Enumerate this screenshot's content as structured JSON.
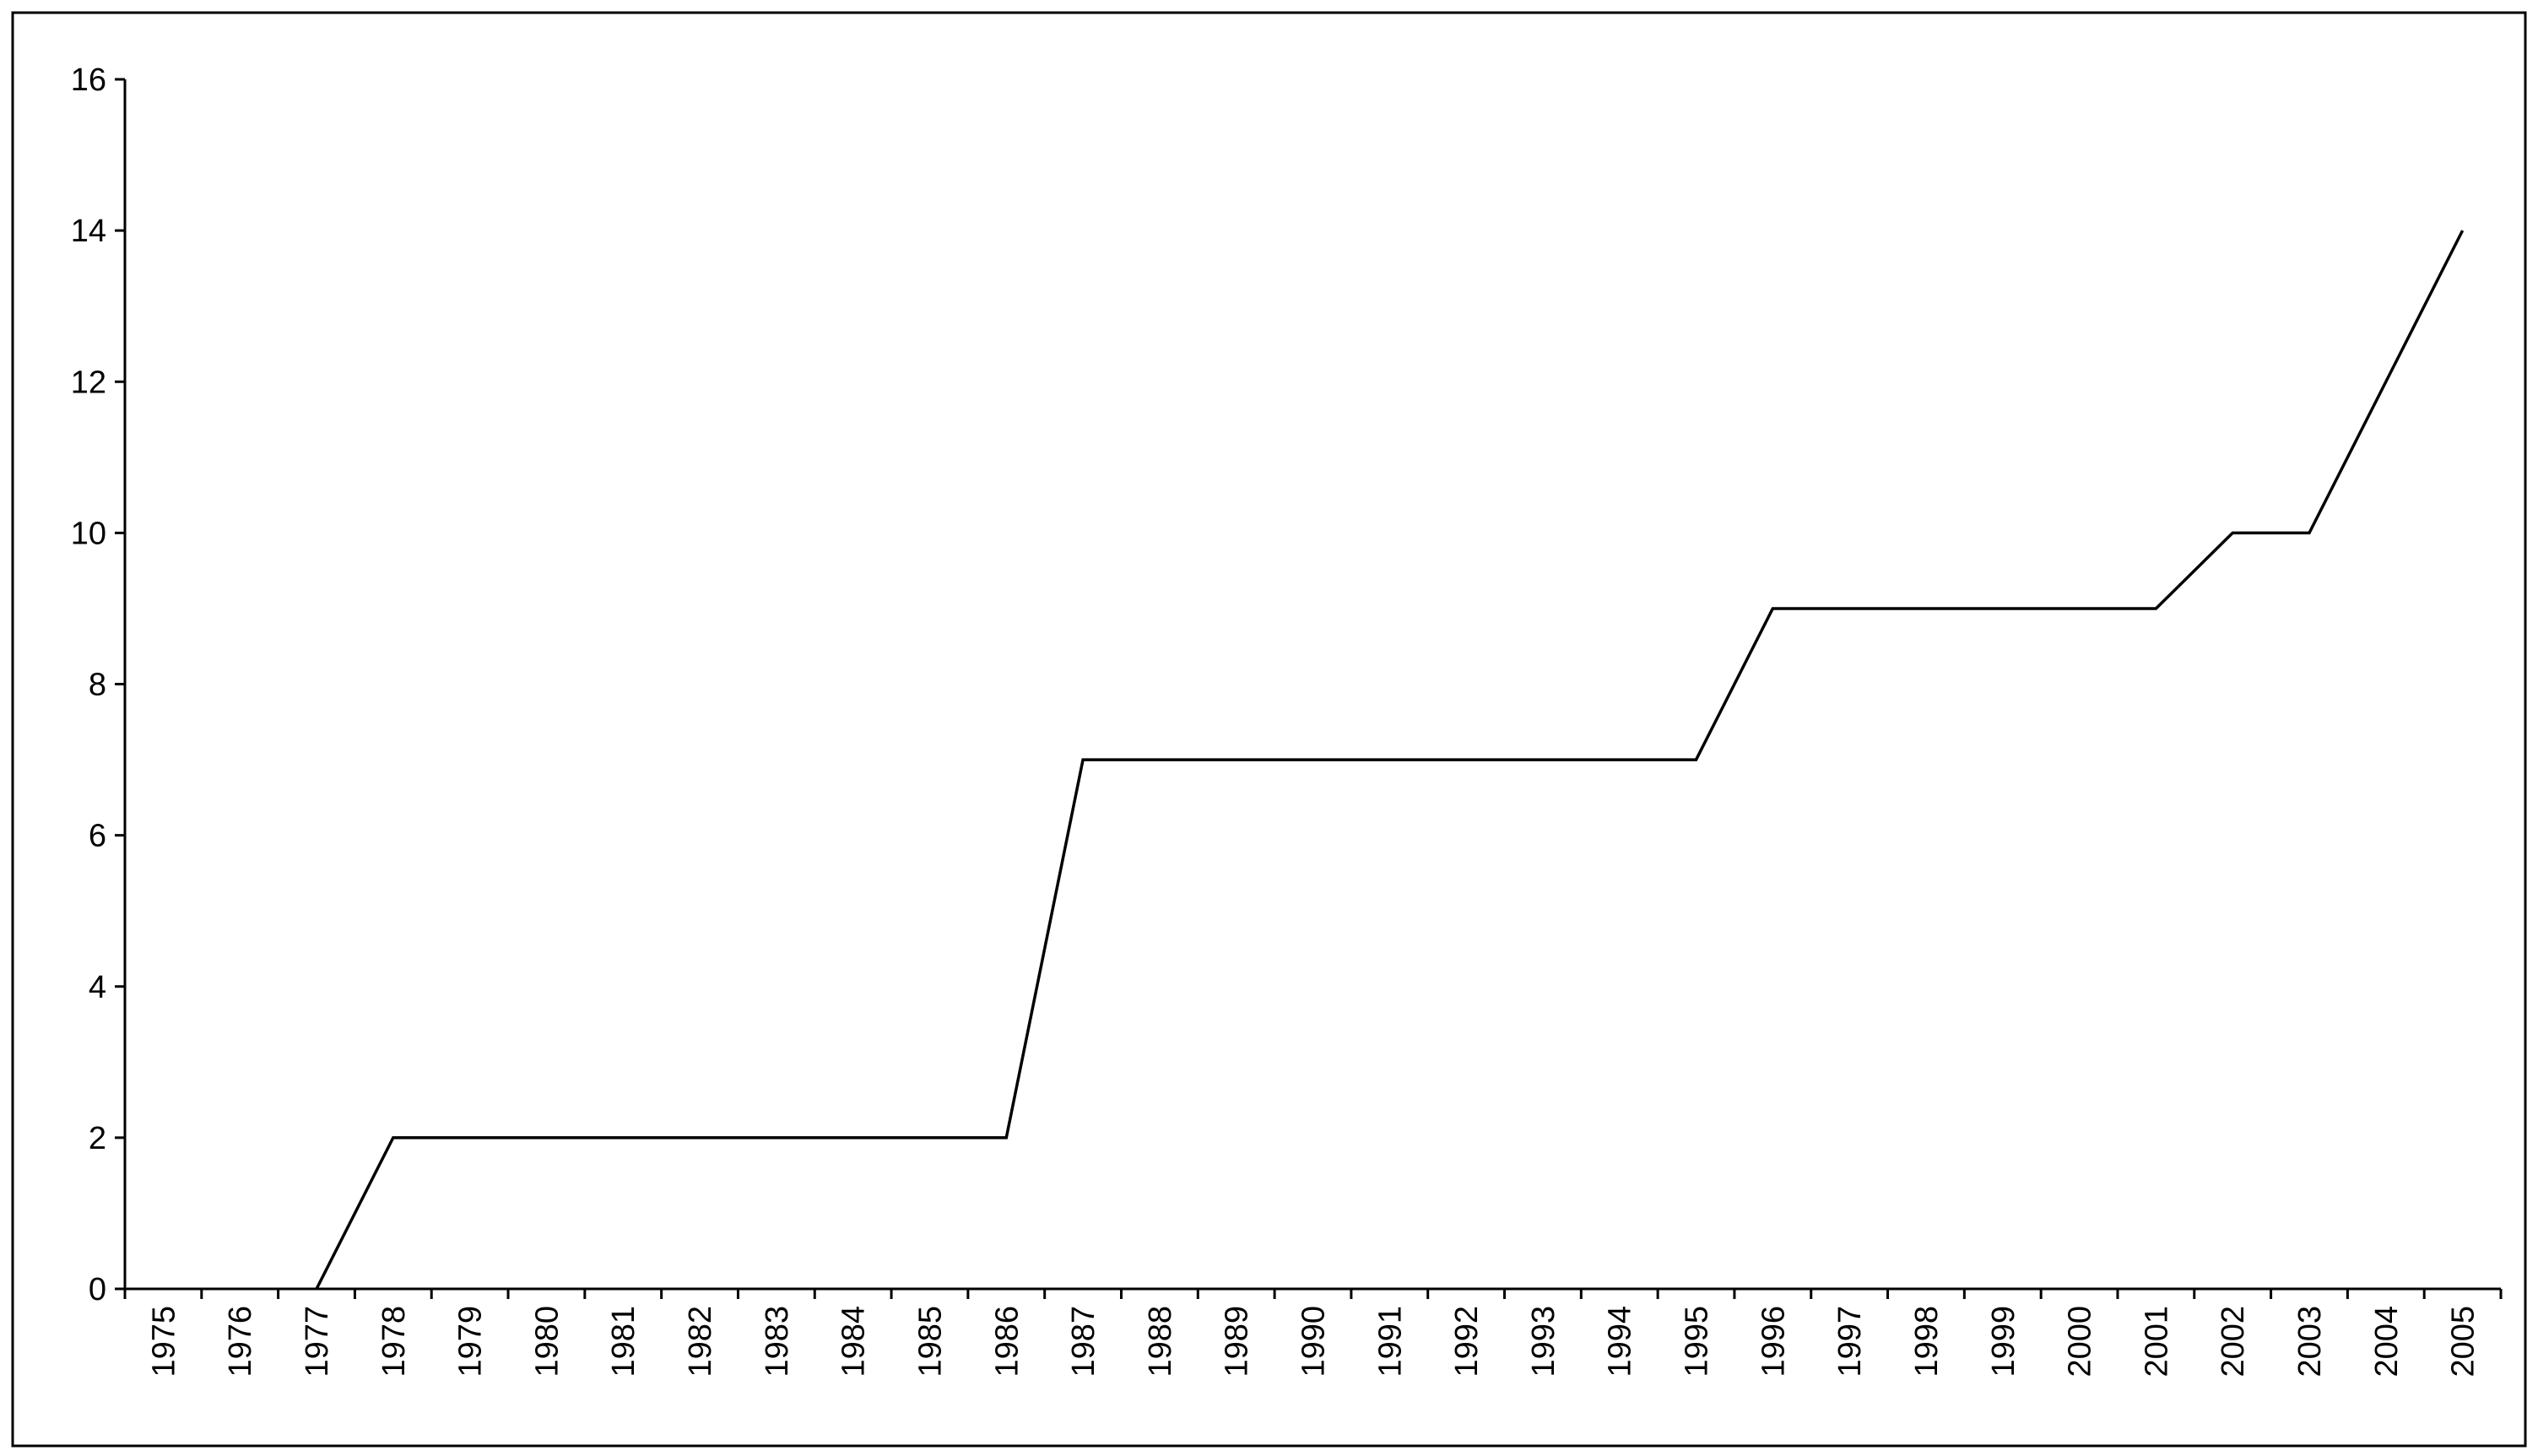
{
  "chart_data": {
    "type": "line",
    "categories": [
      "1975",
      "1976",
      "1977",
      "1978",
      "1979",
      "1980",
      "1981",
      "1982",
      "1983",
      "1984",
      "1985",
      "1986",
      "1987",
      "1988",
      "1989",
      "1990",
      "1991",
      "1992",
      "1993",
      "1994",
      "1995",
      "1996",
      "1997",
      "1998",
      "1999",
      "2000",
      "2001",
      "2002",
      "2003",
      "2004",
      "2005"
    ],
    "values": [
      null,
      null,
      0,
      2,
      2,
      2,
      2,
      2,
      2,
      2,
      2,
      2,
      7,
      7,
      7,
      7,
      7,
      7,
      7,
      7,
      7,
      9,
      9,
      9,
      9,
      9,
      9,
      10,
      10,
      12,
      14
    ],
    "color": "#000000",
    "ylim": [
      0,
      16
    ],
    "yticks": [
      0,
      2,
      4,
      6,
      8,
      10,
      12,
      14,
      16
    ],
    "grid": false
  }
}
